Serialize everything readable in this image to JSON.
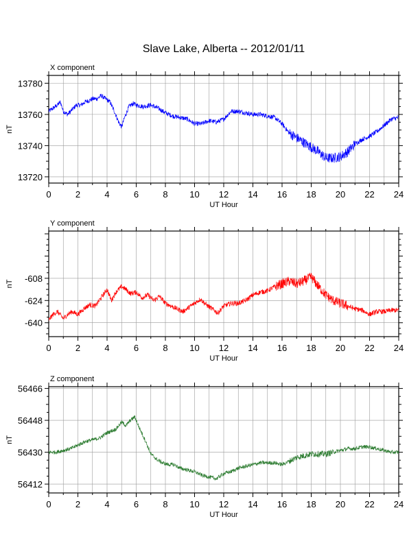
{
  "title": "Slave Lake, Alberta -- 2012/01/11",
  "chart_data": [
    {
      "type": "line",
      "component_label": "X component",
      "xlabel": "UT Hour",
      "ylabel": "nT",
      "color": "#0000ff",
      "xlim": [
        0,
        24
      ],
      "ylim": [
        13716,
        13785
      ],
      "x_ticks": [
        "0",
        "2",
        "4",
        "6",
        "8",
        "10",
        "12",
        "14",
        "16",
        "18",
        "20",
        "22",
        "24"
      ],
      "y_ticks": [
        {
          "label": "13720",
          "value": 13720
        },
        {
          "label": "13740",
          "value": 13740
        },
        {
          "label": "13760",
          "value": 13760
        },
        {
          "label": "13780",
          "value": 13780
        }
      ],
      "grid": true,
      "noise": 1.5,
      "series": [
        {
          "x": [
            0,
            0.3,
            0.6,
            0.8,
            1.0,
            1.3,
            1.6,
            1.9,
            2.2,
            2.5,
            2.8,
            3.0,
            3.3,
            3.6,
            3.9,
            4.2,
            4.5,
            4.8,
            5.0,
            5.2,
            5.5,
            5.8,
            6.0,
            6.5,
            7.0,
            7.5,
            8.0,
            8.5,
            9.0,
            9.5,
            10.0,
            10.5,
            11.0,
            11.5,
            12.0,
            12.5,
            13.0,
            13.5,
            14.0,
            14.5,
            15.0,
            15.5,
            16.0,
            16.5,
            17.0,
            17.5,
            18.0,
            18.5,
            19.0,
            19.5,
            20.0,
            20.5,
            21.0,
            21.5,
            22.0,
            22.5,
            23.0,
            23.5,
            24.0
          ],
          "y": [
            13762,
            13764,
            13766,
            13768,
            13762,
            13760,
            13763,
            13766,
            13766,
            13768,
            13769,
            13770,
            13770,
            13772,
            13770,
            13768,
            13762,
            13755,
            13752,
            13758,
            13765,
            13767,
            13766,
            13765,
            13766,
            13764,
            13761,
            13759,
            13758,
            13757,
            13754,
            13754,
            13756,
            13755,
            13757,
            13762,
            13762,
            13761,
            13760,
            13760,
            13759,
            13758,
            13754,
            13748,
            13745,
            13742,
            13739,
            13736,
            13732,
            13732,
            13733,
            13736,
            13741,
            13744,
            13746,
            13749,
            13753,
            13757,
            13758
          ]
        }
      ]
    },
    {
      "type": "line",
      "component_label": "Y component",
      "xlabel": "UT Hour",
      "ylabel": "nT",
      "color": "#ff0000",
      "xlim": [
        0,
        24
      ],
      "ylim": [
        -650,
        -574
      ],
      "x_ticks": [
        "0",
        "2",
        "4",
        "6",
        "8",
        "10",
        "12",
        "14",
        "16",
        "18",
        "20",
        "22",
        "24"
      ],
      "y_ticks": [
        {
          "label": "-640",
          "value": -640
        },
        {
          "label": "-624",
          "value": -624
        },
        {
          "label": "-608",
          "value": -608
        }
      ],
      "grid": true,
      "noise": 1.8,
      "series": [
        {
          "x": [
            0,
            0.3,
            0.6,
            1.0,
            1.3,
            1.6,
            2.0,
            2.4,
            2.8,
            3.2,
            3.6,
            4.0,
            4.3,
            4.6,
            5.0,
            5.3,
            5.6,
            6.0,
            6.4,
            6.8,
            7.2,
            7.6,
            8.0,
            8.4,
            8.8,
            9.2,
            9.6,
            10.0,
            10.4,
            10.8,
            11.2,
            11.6,
            12.0,
            12.5,
            13.0,
            13.5,
            14.0,
            14.5,
            15.0,
            15.5,
            16.0,
            16.5,
            17.0,
            17.5,
            18.0,
            18.5,
            19.0,
            19.5,
            20.0,
            20.5,
            21.0,
            21.5,
            22.0,
            22.5,
            23.0,
            23.5,
            24.0
          ],
          "y": [
            -638,
            -634,
            -632,
            -637,
            -634,
            -632,
            -634,
            -630,
            -627,
            -628,
            -622,
            -616,
            -624,
            -618,
            -614,
            -616,
            -619,
            -618,
            -622,
            -620,
            -624,
            -621,
            -626,
            -628,
            -630,
            -632,
            -629,
            -626,
            -623,
            -627,
            -630,
            -633,
            -628,
            -626,
            -626,
            -624,
            -620,
            -618,
            -617,
            -614,
            -612,
            -610,
            -612,
            -610,
            -607,
            -614,
            -620,
            -624,
            -626,
            -628,
            -630,
            -631,
            -634,
            -632,
            -632,
            -631,
            -631
          ]
        }
      ]
    },
    {
      "type": "line",
      "component_label": "Z component",
      "xlabel": "UT Hour",
      "ylabel": "nT",
      "color": "#2e7d32",
      "xlim": [
        0,
        24
      ],
      "ylim": [
        56407,
        56467
      ],
      "x_ticks": [
        "0",
        "2",
        "4",
        "6",
        "8",
        "10",
        "12",
        "14",
        "16",
        "18",
        "20",
        "22",
        "24"
      ],
      "y_ticks": [
        {
          "label": "56412",
          "value": 56412
        },
        {
          "label": "56430",
          "value": 56430
        },
        {
          "label": "56448",
          "value": 56448
        },
        {
          "label": "56466",
          "value": 56466
        }
      ],
      "grid": true,
      "noise": 1.1,
      "series": [
        {
          "x": [
            0,
            0.5,
            1.0,
            1.5,
            2.0,
            2.5,
            3.0,
            3.5,
            4.0,
            4.3,
            4.6,
            5.0,
            5.3,
            5.6,
            5.9,
            6.2,
            6.6,
            7.0,
            7.4,
            7.8,
            8.2,
            8.6,
            9.0,
            9.5,
            10.0,
            10.5,
            11.0,
            11.5,
            12.0,
            12.5,
            13.0,
            13.5,
            14.0,
            14.5,
            15.0,
            15.5,
            16.0,
            16.5,
            17.0,
            17.5,
            18.0,
            18.5,
            19.0,
            19.5,
            20.0,
            20.5,
            21.0,
            21.5,
            22.0,
            22.5,
            23.0,
            23.5,
            24.0
          ],
          "y": [
            56430,
            56430,
            56431,
            56432,
            56434,
            56436,
            56437,
            56438,
            56441,
            56442,
            56443,
            56447,
            56445,
            56448,
            56450,
            56444,
            56437,
            56429,
            56426,
            56424,
            56423,
            56423,
            56421,
            56420,
            56419,
            56417,
            56416,
            56415,
            56418,
            56419,
            56421,
            56422,
            56423,
            56424,
            56424,
            56424,
            56423,
            56425,
            56427,
            56428,
            56429,
            56429,
            56429,
            56430,
            56431,
            56432,
            56432,
            56433,
            56433,
            56432,
            56431,
            56430,
            56430
          ]
        }
      ]
    }
  ]
}
